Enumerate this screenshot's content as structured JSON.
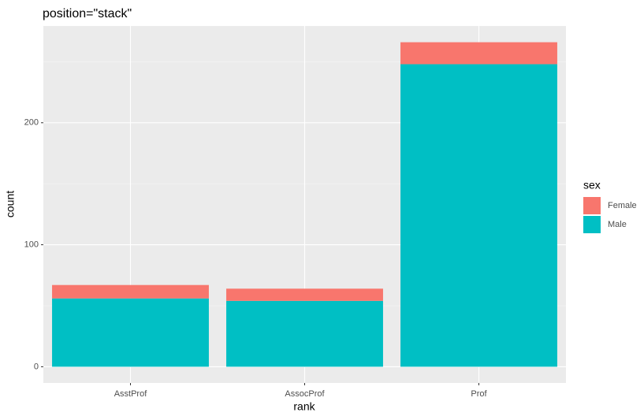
{
  "chart_data": {
    "type": "stacked_bar",
    "title": "position=\"stack\"",
    "x_label": "rank",
    "y_label": "count",
    "categories": [
      "AsstProf",
      "AssocProf",
      "Prof"
    ],
    "series": [
      {
        "name": "Female",
        "color": "#F8766D",
        "values": [
          11,
          10,
          18
        ]
      },
      {
        "name": "Male",
        "color": "#00BFC4",
        "values": [
          56,
          54,
          248
        ]
      }
    ],
    "stack_order": [
      "Male",
      "Female"
    ],
    "ylim": [
      -13.3,
      279.3
    ],
    "yticks": [
      0,
      100,
      200
    ],
    "minor_yticks": [
      50,
      150,
      250
    ],
    "grid": true,
    "legend_title": "sex",
    "legend_position": "right"
  }
}
